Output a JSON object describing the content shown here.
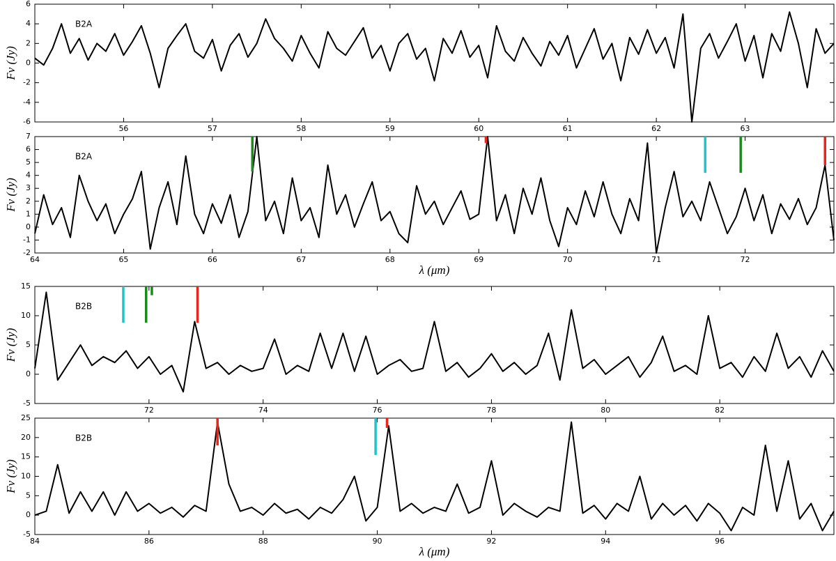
{
  "chart_data": [
    {
      "type": "line",
      "label": "B2A",
      "ylabel": "Fν (Jy)",
      "color": "#000000",
      "xlim": [
        55,
        64
      ],
      "xticks": [
        56,
        57,
        58,
        59,
        60,
        61,
        62,
        63
      ],
      "ylim": [
        -6,
        6
      ],
      "yticks": [
        -6,
        -4,
        -2,
        0,
        2,
        4,
        6
      ],
      "x": [
        55.0,
        55.1,
        55.2,
        55.3,
        55.4,
        55.5,
        55.6,
        55.7,
        55.8,
        55.9,
        56.0,
        56.1,
        56.2,
        56.3,
        56.4,
        56.5,
        56.6,
        56.7,
        56.8,
        56.9,
        57.0,
        57.1,
        57.2,
        57.3,
        57.4,
        57.5,
        57.6,
        57.7,
        57.8,
        57.9,
        58.0,
        58.1,
        58.2,
        58.3,
        58.4,
        58.5,
        58.6,
        58.7,
        58.8,
        58.9,
        59.0,
        59.1,
        59.2,
        59.3,
        59.4,
        59.5,
        59.6,
        59.7,
        59.8,
        59.9,
        60.0,
        60.1,
        60.2,
        60.3,
        60.4,
        60.5,
        60.6,
        60.7,
        60.8,
        60.9,
        61.0,
        61.1,
        61.2,
        61.3,
        61.4,
        61.5,
        61.6,
        61.7,
        61.8,
        61.9,
        62.0,
        62.1,
        62.2,
        62.3,
        62.4,
        62.5,
        62.6,
        62.7,
        62.8,
        62.9,
        63.0,
        63.1,
        63.2,
        63.3,
        63.4,
        63.5,
        63.6,
        63.7,
        63.8,
        63.9,
        64.0
      ],
      "values": [
        0.5,
        -0.2,
        1.5,
        4.0,
        1.0,
        2.5,
        0.3,
        2.0,
        1.2,
        3.0,
        0.8,
        2.2,
        3.8,
        1.0,
        -2.5,
        1.5,
        2.8,
        4.0,
        1.2,
        0.5,
        2.4,
        -0.8,
        1.8,
        3.0,
        0.6,
        2.0,
        4.5,
        2.5,
        1.5,
        0.2,
        2.8,
        1.0,
        -0.5,
        3.2,
        1.5,
        0.8,
        2.2,
        3.6,
        0.5,
        1.8,
        -0.8,
        2.0,
        3.0,
        0.4,
        1.5,
        -1.8,
        2.5,
        1.0,
        3.3,
        0.6,
        1.8,
        -1.5,
        3.8,
        1.2,
        0.2,
        2.6,
        1.0,
        -0.3,
        2.2,
        0.8,
        2.8,
        -0.5,
        1.5,
        3.5,
        0.4,
        2.0,
        -1.8,
        2.6,
        0.9,
        3.4,
        1.0,
        2.6,
        -0.5,
        5.0,
        -6.0,
        1.5,
        3.0,
        0.5,
        2.2,
        4.0,
        0.2,
        2.8,
        -1.5,
        3.0,
        1.2,
        5.2,
        2.0,
        -2.5,
        3.5,
        1.0,
        2.0
      ],
      "lines": []
    },
    {
      "type": "line",
      "label": "B2A",
      "ylabel": "Fν (Jy)",
      "xlabel": "λ (μm)",
      "color": "#000000",
      "xlim": [
        64,
        73
      ],
      "xticks": [
        64,
        65,
        66,
        67,
        68,
        69,
        70,
        71,
        72
      ],
      "ylim": [
        -2,
        7
      ],
      "yticks": [
        -2,
        -1,
        0,
        1,
        2,
        3,
        4,
        5,
        6,
        7
      ],
      "x": [
        64.0,
        64.1,
        64.2,
        64.3,
        64.4,
        64.5,
        64.6,
        64.7,
        64.8,
        64.9,
        65.0,
        65.1,
        65.2,
        65.3,
        65.4,
        65.5,
        65.6,
        65.7,
        65.8,
        65.9,
        66.0,
        66.1,
        66.2,
        66.3,
        66.4,
        66.5,
        66.6,
        66.7,
        66.8,
        66.9,
        67.0,
        67.1,
        67.2,
        67.3,
        67.4,
        67.5,
        67.6,
        67.7,
        67.8,
        67.9,
        68.0,
        68.1,
        68.2,
        68.3,
        68.4,
        68.5,
        68.6,
        68.7,
        68.8,
        68.9,
        69.0,
        69.1,
        69.2,
        69.3,
        69.4,
        69.5,
        69.6,
        69.7,
        69.8,
        69.9,
        70.0,
        70.1,
        70.2,
        70.3,
        70.4,
        70.5,
        70.6,
        70.7,
        70.8,
        70.9,
        71.0,
        71.1,
        71.2,
        71.3,
        71.4,
        71.5,
        71.6,
        71.7,
        71.8,
        71.9,
        72.0,
        72.1,
        72.2,
        72.3,
        72.4,
        72.5,
        72.6,
        72.7,
        72.8,
        72.9,
        73.0
      ],
      "values": [
        -0.5,
        2.5,
        0.2,
        1.5,
        -0.8,
        4.0,
        2.0,
        0.5,
        1.8,
        -0.5,
        1.0,
        2.2,
        4.3,
        -1.7,
        1.5,
        3.5,
        0.2,
        5.5,
        1.0,
        -0.5,
        1.8,
        0.3,
        2.5,
        -0.8,
        1.2,
        7.0,
        0.5,
        2.0,
        -0.5,
        3.8,
        0.5,
        1.5,
        -0.8,
        4.8,
        1.0,
        2.5,
        0.0,
        1.8,
        3.5,
        0.5,
        1.2,
        -0.5,
        -1.2,
        3.2,
        1.0,
        2.0,
        0.2,
        1.5,
        2.8,
        0.6,
        1.0,
        7.0,
        0.5,
        2.5,
        -0.5,
        3.0,
        1.0,
        3.8,
        0.5,
        -1.5,
        1.5,
        0.2,
        2.8,
        0.8,
        3.5,
        1.0,
        -0.5,
        2.2,
        0.5,
        6.5,
        -2.0,
        1.5,
        4.3,
        0.8,
        2.0,
        0.5,
        3.5,
        1.5,
        -0.5,
        0.8,
        3.0,
        0.5,
        2.5,
        -0.5,
        1.8,
        0.6,
        2.2,
        0.2,
        1.5,
        4.8,
        -1.0
      ],
      "lines": [
        {
          "x": 66.45,
          "y": [
            4.3,
            7
          ],
          "color": "#1a8a1a"
        },
        {
          "x": 69.08,
          "y": [
            6.5,
            7
          ],
          "color": "#e8261e"
        },
        {
          "x": 71.55,
          "y": [
            4.2,
            7
          ],
          "color": "#22c4c8"
        },
        {
          "x": 71.95,
          "y": [
            4.2,
            7
          ],
          "color": "#1a8a1a"
        },
        {
          "x": 72.9,
          "y": [
            4.8,
            7
          ],
          "color": "#e8261e"
        }
      ]
    },
    {
      "type": "line",
      "label": "B2B",
      "ylabel": "Fν (Jy)",
      "color": "#000000",
      "xlim": [
        70,
        84
      ],
      "xticks": [
        72,
        74,
        76,
        78,
        80,
        82
      ],
      "ylim": [
        -5,
        15
      ],
      "yticks": [
        -5,
        0,
        5,
        10,
        15
      ],
      "x": [
        70.0,
        70.2,
        70.4,
        70.6,
        70.8,
        71.0,
        71.2,
        71.4,
        71.6,
        71.8,
        72.0,
        72.2,
        72.4,
        72.6,
        72.8,
        73.0,
        73.2,
        73.4,
        73.6,
        73.8,
        74.0,
        74.2,
        74.4,
        74.6,
        74.8,
        75.0,
        75.2,
        75.4,
        75.6,
        75.8,
        76.0,
        76.2,
        76.4,
        76.6,
        76.8,
        77.0,
        77.2,
        77.4,
        77.6,
        77.8,
        78.0,
        78.2,
        78.4,
        78.6,
        78.8,
        79.0,
        79.2,
        79.4,
        79.6,
        79.8,
        80.0,
        80.2,
        80.4,
        80.6,
        80.8,
        81.0,
        81.2,
        81.4,
        81.6,
        81.8,
        82.0,
        82.2,
        82.4,
        82.6,
        82.8,
        83.0,
        83.2,
        83.4,
        83.6,
        83.8,
        84.0
      ],
      "values": [
        1,
        14,
        -1,
        2,
        5,
        1.5,
        3,
        2,
        4,
        1,
        3,
        0,
        1.5,
        -3,
        9,
        1,
        2,
        0,
        1.5,
        0.5,
        1,
        6,
        0,
        1.5,
        0.5,
        7,
        1,
        7,
        0.5,
        6.5,
        0,
        1.5,
        2.5,
        0.5,
        1,
        9,
        0.5,
        2,
        -0.5,
        1,
        3.5,
        0.5,
        2,
        0,
        1.5,
        7,
        -1,
        11,
        1,
        2.5,
        0,
        1.5,
        3,
        -0.5,
        2,
        6.5,
        0.5,
        1.5,
        0,
        10,
        1,
        2,
        -0.5,
        3,
        0.5,
        7,
        1,
        3,
        -0.5,
        4,
        0.5
      ],
      "lines": [
        {
          "x": 71.55,
          "y": [
            8.8,
            15
          ],
          "color": "#22c4c8"
        },
        {
          "x": 71.95,
          "y": [
            8.8,
            15
          ],
          "color": "#1a8a1a"
        },
        {
          "x": 72.05,
          "y": [
            13.5,
            15
          ],
          "color": "#1a8a1a"
        },
        {
          "x": 72.85,
          "y": [
            8.8,
            15
          ],
          "color": "#e8261e"
        }
      ]
    },
    {
      "type": "line",
      "label": "B2B",
      "ylabel": "Fν (Jy)",
      "xlabel": "λ (μm)",
      "color": "#000000",
      "xlim": [
        84,
        98
      ],
      "xticks": [
        84,
        86,
        88,
        90,
        92,
        94,
        96
      ],
      "ylim": [
        -5,
        25
      ],
      "yticks": [
        -5,
        0,
        5,
        10,
        15,
        20,
        25
      ],
      "x": [
        84.0,
        84.2,
        84.4,
        84.6,
        84.8,
        85.0,
        85.2,
        85.4,
        85.6,
        85.8,
        86.0,
        86.2,
        86.4,
        86.6,
        86.8,
        87.0,
        87.2,
        87.4,
        87.6,
        87.8,
        88.0,
        88.2,
        88.4,
        88.6,
        88.8,
        89.0,
        89.2,
        89.4,
        89.6,
        89.8,
        90.0,
        90.2,
        90.4,
        90.6,
        90.8,
        91.0,
        91.2,
        91.4,
        91.6,
        91.8,
        92.0,
        92.2,
        92.4,
        92.6,
        92.8,
        93.0,
        93.2,
        93.4,
        93.6,
        93.8,
        94.0,
        94.2,
        94.4,
        94.6,
        94.8,
        95.0,
        95.2,
        95.4,
        95.6,
        95.8,
        96.0,
        96.2,
        96.4,
        96.6,
        96.8,
        97.0,
        97.2,
        97.4,
        97.6,
        97.8,
        98.0
      ],
      "values": [
        0,
        1,
        13,
        0.5,
        6,
        1,
        6,
        0,
        6,
        1,
        3,
        0.5,
        2,
        -0.5,
        2.5,
        1,
        24,
        8,
        1,
        2,
        0,
        3,
        0.5,
        1.5,
        -1,
        2,
        0.5,
        4,
        10,
        -1.5,
        2,
        23,
        1,
        3,
        0.5,
        2,
        1,
        8,
        0.5,
        2,
        14,
        0,
        3,
        1,
        -0.5,
        2,
        1,
        24,
        0.5,
        2.5,
        -1,
        3,
        1,
        10,
        -1,
        3,
        0,
        2.5,
        -1.5,
        3,
        0.5,
        -4,
        2,
        0,
        18,
        1,
        14,
        -1,
        3,
        -4,
        1
      ],
      "lines": [
        {
          "x": 87.2,
          "y": [
            18,
            25
          ],
          "color": "#e8261e"
        },
        {
          "x": 89.97,
          "y": [
            15.5,
            25
          ],
          "color": "#22c4c8"
        },
        {
          "x": 90.17,
          "y": [
            22.5,
            25
          ],
          "color": "#e8261e"
        }
      ]
    }
  ]
}
